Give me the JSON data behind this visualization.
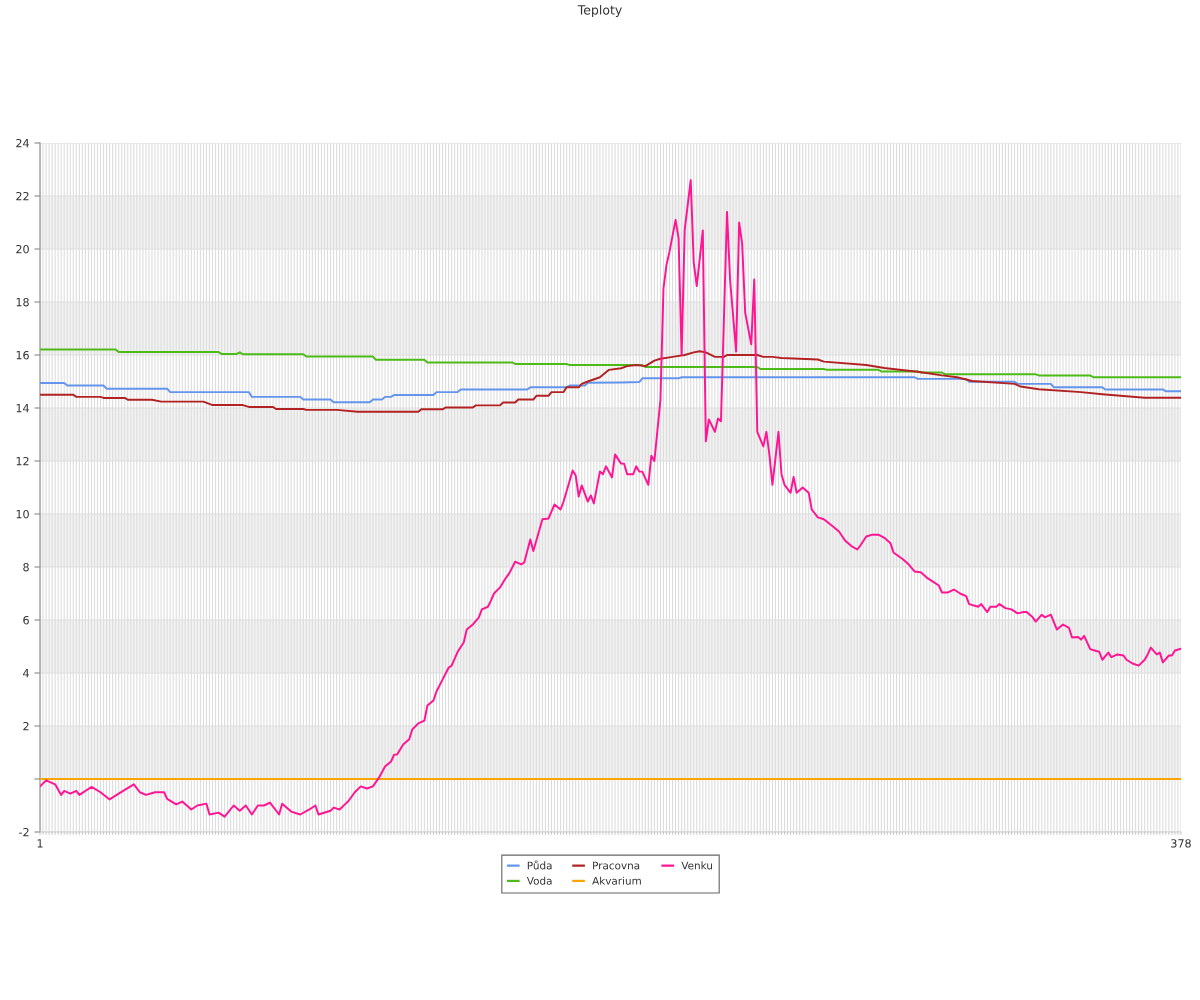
{
  "chart_data": {
    "type": "line",
    "title": "Teploty",
    "xlim": [
      1,
      378
    ],
    "xticks": [
      1,
      {
        "value": 2,
        "label": null
      },
      {
        "value": 3,
        "label": null
      },
      {
        "value": 4,
        "label": null
      },
      {
        "value": 5,
        "label": null
      },
      {
        "value": 6,
        "label": null
      },
      {
        "value": 7,
        "label": null
      },
      {
        "value": 8,
        "label": null
      },
      {
        "value": 9,
        "label": null
      },
      {
        "value": 10,
        "label": null
      },
      {
        "value": 11,
        "label": null
      },
      {
        "value": 12,
        "label": null
      },
      {
        "value": 13,
        "label": null
      },
      {
        "value": 14,
        "label": null
      },
      {
        "value": 15,
        "label": null
      },
      {
        "value": 16,
        "label": null
      },
      {
        "value": 17,
        "label": null
      },
      {
        "value": 18,
        "label": null
      },
      {
        "value": 19,
        "label": null
      },
      {
        "value": 20,
        "label": null
      },
      {
        "value": 21,
        "label": null
      },
      {
        "value": 22,
        "label": null
      },
      {
        "value": 23,
        "label": null
      },
      {
        "value": 24,
        "label": null
      },
      {
        "value": 25,
        "label": null
      },
      {
        "value": 26,
        "label": null
      },
      {
        "value": 27,
        "label": null
      },
      {
        "value": 28,
        "label": null
      },
      {
        "value": 29,
        "label": null
      },
      {
        "value": 30,
        "label": null
      },
      {
        "value": 31,
        "label": null
      },
      {
        "value": 32,
        "label": null
      },
      {
        "value": 33,
        "label": null
      },
      {
        "value": 34,
        "label": null
      },
      {
        "value": 35,
        "label": null
      },
      {
        "value": 36,
        "label": null
      },
      {
        "value": 37,
        "label": null
      },
      {
        "value": 38,
        "label": null
      },
      {
        "value": 39,
        "label": null
      },
      {
        "value": 40,
        "label": null
      },
      {
        "value": 41,
        "label": null
      },
      {
        "value": 42,
        "label": null
      },
      {
        "value": 43,
        "label": null
      },
      {
        "value": 44,
        "label": null
      },
      {
        "value": 45,
        "label": null
      },
      {
        "value": 46,
        "label": null
      },
      {
        "value": 47,
        "label": null
      },
      {
        "value": 48,
        "label": null
      },
      {
        "value": 49,
        "label": null
      },
      {
        "value": 50,
        "label": null
      },
      {
        "value": 51,
        "label": null
      },
      {
        "value": 52,
        "label": null
      },
      {
        "value": 53,
        "label": null
      },
      {
        "value": 54,
        "label": null
      },
      {
        "value": 55,
        "label": null
      },
      {
        "value": 56,
        "label": null
      },
      {
        "value": 57,
        "label": null
      },
      {
        "value": 58,
        "label": null
      },
      {
        "value": 59,
        "label": null
      },
      {
        "value": 60,
        "label": null
      },
      {
        "value": 61,
        "label": null
      },
      {
        "value": 62,
        "label": null
      },
      {
        "value": 63,
        "label": null
      },
      {
        "value": 64,
        "label": null
      },
      {
        "value": 65,
        "label": null
      },
      {
        "value": 66,
        "label": null
      },
      {
        "value": 67,
        "label": null
      },
      {
        "value": 68,
        "label": null
      },
      {
        "value": 69,
        "label": null
      },
      {
        "value": 70,
        "label": null
      },
      {
        "value": 71,
        "label": null
      },
      {
        "value": 72,
        "label": null
      },
      {
        "value": 73,
        "label": null
      },
      {
        "value": 74,
        "label": null
      },
      {
        "value": 75,
        "label": null
      },
      {
        "value": 76,
        "label": null
      },
      {
        "value": 77,
        "label": null
      },
      {
        "value": 78,
        "label": null
      },
      {
        "value": 79,
        "label": null
      },
      {
        "value": 80,
        "label": null
      },
      {
        "value": 81,
        "label": null
      },
      {
        "value": 82,
        "label": null
      },
      {
        "value": 83,
        "label": null
      },
      {
        "value": 84,
        "label": null
      },
      {
        "value": 85,
        "label": null
      },
      {
        "value": 86,
        "label": null
      },
      {
        "value": 87,
        "label": null
      },
      {
        "value": 88,
        "label": null
      },
      {
        "value": 89,
        "label": null
      },
      {
        "value": 90,
        "label": null
      },
      {
        "value": 91,
        "label": null
      },
      {
        "value": 92,
        "label": null
      },
      {
        "value": 93,
        "label": null
      },
      {
        "value": 94,
        "label": null
      },
      {
        "value": 95,
        "label": null
      },
      {
        "value": 96,
        "label": null
      },
      {
        "value": 97,
        "label": null
      },
      {
        "value": 98,
        "label": null
      },
      {
        "value": 99,
        "label": null
      },
      {
        "value": 100,
        "label": null
      },
      {
        "value": 101,
        "label": null
      },
      {
        "value": 102,
        "label": null
      },
      {
        "value": 103,
        "label": null
      },
      {
        "value": 104,
        "label": null
      },
      {
        "value": 105,
        "label": null
      },
      {
        "value": 106,
        "label": null
      },
      {
        "value": 107,
        "label": null
      },
      {
        "value": 108,
        "label": null
      },
      {
        "value": 109,
        "label": null
      },
      {
        "value": 110,
        "label": null
      },
      {
        "value": 111,
        "label": null
      },
      {
        "value": 112,
        "label": null
      },
      {
        "value": 113,
        "label": null
      },
      {
        "value": 114,
        "label": null
      },
      {
        "value": 115,
        "label": null
      },
      {
        "value": 116,
        "label": null
      },
      {
        "value": 117,
        "label": null
      },
      {
        "value": 118,
        "label": null
      },
      {
        "value": 119,
        "label": null
      },
      {
        "value": 120,
        "label": null
      },
      {
        "value": 121,
        "label": null
      },
      {
        "value": 122,
        "label": null
      },
      {
        "value": 123,
        "label": null
      },
      {
        "value": 124,
        "label": null
      },
      {
        "value": 125,
        "label": null
      },
      {
        "value": 126,
        "label": null
      },
      {
        "value": 127,
        "label": null
      },
      {
        "value": 128,
        "label": null
      },
      {
        "value": 129,
        "label": null
      },
      {
        "value": 130,
        "label": null
      },
      {
        "value": 131,
        "label": null
      },
      {
        "value": 132,
        "label": null
      },
      {
        "value": 133,
        "label": null
      },
      {
        "value": 134,
        "label": null
      },
      {
        "value": 135,
        "label": null
      },
      {
        "value": 136,
        "label": null
      },
      {
        "value": 137,
        "label": null
      },
      {
        "value": 138,
        "label": null
      },
      {
        "value": 139,
        "label": null
      },
      {
        "value": 140,
        "label": null
      },
      {
        "value": 141,
        "label": null
      },
      {
        "value": 142,
        "label": null
      },
      {
        "value": 143,
        "label": null
      },
      {
        "value": 144,
        "label": null
      },
      {
        "value": 145,
        "label": null
      },
      {
        "value": 146,
        "label": null
      },
      {
        "value": 147,
        "label": null
      },
      {
        "value": 148,
        "label": null
      },
      {
        "value": 149,
        "label": null
      },
      {
        "value": 150,
        "label": null
      },
      {
        "value": 151,
        "label": null
      },
      {
        "value": 152,
        "label": null
      },
      {
        "value": 153,
        "label": null
      },
      {
        "value": 154,
        "label": null
      },
      {
        "value": 155,
        "label": null
      },
      {
        "value": 156,
        "label": null
      },
      {
        "value": 157,
        "label": null
      },
      {
        "value": 158,
        "label": null
      },
      {
        "value": 159,
        "label": null
      },
      {
        "value": 160,
        "label": null
      },
      {
        "value": 161,
        "label": null
      },
      {
        "value": 162,
        "label": null
      },
      {
        "value": 163,
        "label": null
      },
      {
        "value": 164,
        "label": null
      },
      {
        "value": 165,
        "label": null
      },
      {
        "value": 166,
        "label": null
      },
      {
        "value": 167,
        "label": null
      },
      {
        "value": 168,
        "label": null
      },
      {
        "value": 169,
        "label": null
      },
      {
        "value": 170,
        "label": null
      },
      {
        "value": 171,
        "label": null
      },
      {
        "value": 172,
        "label": null
      },
      {
        "value": 173,
        "label": null
      },
      {
        "value": 174,
        "label": null
      },
      {
        "value": 175,
        "label": null
      },
      {
        "value": 176,
        "label": null
      },
      {
        "value": 177,
        "label": null
      },
      {
        "value": 178,
        "label": null
      },
      {
        "value": 179,
        "label": null
      },
      {
        "value": 180,
        "label": null
      },
      {
        "value": 181,
        "label": null
      },
      {
        "value": 182,
        "label": null
      },
      {
        "value": 183,
        "label": null
      },
      {
        "value": 184,
        "label": null
      },
      {
        "value": 185,
        "label": null
      },
      {
        "value": 186,
        "label": null
      },
      {
        "value": 187,
        "label": null
      },
      {
        "value": 188,
        "label": null
      },
      {
        "value": 189,
        "label": null
      },
      {
        "value": 190,
        "label": null
      },
      {
        "value": 191,
        "label": null
      },
      {
        "value": 192,
        "label": null
      },
      {
        "value": 193,
        "label": null
      },
      {
        "value": 194,
        "label": null
      },
      {
        "value": 195,
        "label": null
      },
      {
        "value": 196,
        "label": null
      },
      {
        "value": 197,
        "label": null
      },
      {
        "value": 198,
        "label": null
      },
      {
        "value": 199,
        "label": null
      },
      {
        "value": 200,
        "label": null
      },
      {
        "value": 201,
        "label": null
      },
      {
        "value": 202,
        "label": null
      },
      {
        "value": 203,
        "label": null
      },
      {
        "value": 204,
        "label": null
      },
      {
        "value": 205,
        "label": null
      },
      {
        "value": 206,
        "label": null
      },
      {
        "value": 207,
        "label": null
      },
      {
        "value": 208,
        "label": null
      },
      {
        "value": 209,
        "label": null
      },
      {
        "value": 210,
        "label": null
      },
      {
        "value": 211,
        "label": null
      },
      {
        "value": 212,
        "label": null
      },
      {
        "value": 213,
        "label": null
      },
      {
        "value": 214,
        "label": null
      },
      {
        "value": 215,
        "label": null
      },
      {
        "value": 216,
        "label": null
      },
      {
        "value": 217,
        "label": null
      },
      {
        "value": 218,
        "label": null
      },
      {
        "value": 219,
        "label": null
      },
      {
        "value": 220,
        "label": null
      },
      {
        "value": 221,
        "label": null
      },
      {
        "value": 222,
        "label": null
      },
      {
        "value": 223,
        "label": null
      },
      {
        "value": 224,
        "label": null
      },
      {
        "value": 225,
        "label": null
      },
      {
        "value": 226,
        "label": null
      },
      {
        "value": 227,
        "label": null
      },
      {
        "value": 228,
        "label": null
      },
      {
        "value": 229,
        "label": null
      },
      {
        "value": 230,
        "label": null
      },
      {
        "value": 231,
        "label": null
      },
      {
        "value": 232,
        "label": null
      },
      {
        "value": 233,
        "label": null
      },
      {
        "value": 234,
        "label": null
      },
      {
        "value": 235,
        "label": null
      },
      {
        "value": 236,
        "label": null
      },
      {
        "value": 237,
        "label": null
      },
      {
        "value": 238,
        "label": null
      },
      {
        "value": 239,
        "label": null
      },
      {
        "value": 240,
        "label": null
      },
      {
        "value": 241,
        "label": null
      },
      {
        "value": 242,
        "label": null
      },
      {
        "value": 243,
        "label": null
      },
      {
        "value": 244,
        "label": null
      },
      {
        "value": 245,
        "label": null
      },
      {
        "value": 246,
        "label": null
      },
      {
        "value": 247,
        "label": null
      },
      {
        "value": 248,
        "label": null
      },
      {
        "value": 249,
        "label": null
      },
      {
        "value": 250,
        "label": null
      },
      {
        "value": 251,
        "label": null
      },
      {
        "value": 252,
        "label": null
      },
      {
        "value": 253,
        "label": null
      },
      {
        "value": 254,
        "label": null
      },
      {
        "value": 255,
        "label": null
      },
      {
        "value": 256,
        "label": null
      },
      {
        "value": 257,
        "label": null
      },
      {
        "value": 258,
        "label": null
      },
      {
        "value": 259,
        "label": null
      },
      {
        "value": 260,
        "label": null
      },
      {
        "value": 261,
        "label": null
      },
      {
        "value": 262,
        "label": null
      },
      {
        "value": 263,
        "label": null
      },
      {
        "value": 264,
        "label": null
      },
      {
        "value": 265,
        "label": null
      },
      {
        "value": 266,
        "label": null
      },
      {
        "value": 267,
        "label": null
      },
      {
        "value": 268,
        "label": null
      },
      {
        "value": 269,
        "label": null
      },
      {
        "value": 270,
        "label": null
      },
      {
        "value": 271,
        "label": null
      },
      {
        "value": 272,
        "label": null
      },
      {
        "value": 273,
        "label": null
      },
      {
        "value": 274,
        "label": null
      },
      {
        "value": 275,
        "label": null
      },
      {
        "value": 276,
        "label": null
      },
      {
        "value": 277,
        "label": null
      },
      {
        "value": 278,
        "label": null
      },
      {
        "value": 279,
        "label": null
      },
      {
        "value": 280,
        "label": null
      },
      {
        "value": 281,
        "label": null
      },
      {
        "value": 282,
        "label": null
      },
      {
        "value": 283,
        "label": null
      },
      {
        "value": 284,
        "label": null
      },
      {
        "value": 285,
        "label": null
      },
      {
        "value": 286,
        "label": null
      },
      {
        "value": 287,
        "label": null
      },
      {
        "value": 288,
        "label": null
      },
      {
        "value": 289,
        "label": null
      },
      {
        "value": 290,
        "label": null
      },
      {
        "value": 291,
        "label": null
      },
      {
        "value": 292,
        "label": null
      },
      {
        "value": 293,
        "label": null
      },
      {
        "value": 294,
        "label": null
      },
      {
        "value": 295,
        "label": null
      },
      {
        "value": 296,
        "label": null
      },
      {
        "value": 297,
        "label": null
      },
      {
        "value": 298,
        "label": null
      },
      {
        "value": 299,
        "label": null
      },
      {
        "value": 300,
        "label": null
      },
      {
        "value": 301,
        "label": null
      },
      {
        "value": 302,
        "label": null
      },
      {
        "value": 303,
        "label": null
      },
      {
        "value": 304,
        "label": null
      },
      {
        "value": 305,
        "label": null
      },
      {
        "value": 306,
        "label": null
      },
      {
        "value": 307,
        "label": null
      },
      {
        "value": 308,
        "label": null
      },
      {
        "value": 309,
        "label": null
      },
      {
        "value": 310,
        "label": null
      },
      {
        "value": 311,
        "label": null
      },
      {
        "value": 312,
        "label": null
      },
      {
        "value": 313,
        "label": null
      },
      {
        "value": 314,
        "label": null
      },
      {
        "value": 315,
        "label": null
      },
      {
        "value": 316,
        "label": null
      },
      {
        "value": 317,
        "label": null
      },
      {
        "value": 318,
        "label": null
      },
      {
        "value": 319,
        "label": null
      },
      {
        "value": 320,
        "label": null
      },
      {
        "value": 321,
        "label": null
      },
      {
        "value": 322,
        "label": null
      },
      {
        "value": 323,
        "label": null
      },
      {
        "value": 324,
        "label": null
      },
      {
        "value": 325,
        "label": null
      },
      {
        "value": 326,
        "label": null
      },
      {
        "value": 327,
        "label": null
      },
      {
        "value": 328,
        "label": null
      },
      {
        "value": 329,
        "label": null
      },
      {
        "value": 330,
        "label": null
      },
      {
        "value": 331,
        "label": null
      },
      {
        "value": 332,
        "label": null
      },
      {
        "value": 333,
        "label": null
      },
      {
        "value": 334,
        "label": null
      },
      {
        "value": 335,
        "label": null
      },
      {
        "value": 336,
        "label": null
      },
      {
        "value": 337,
        "label": null
      },
      {
        "value": 338,
        "label": null
      },
      {
        "value": 339,
        "label": null
      },
      {
        "value": 340,
        "label": null
      },
      {
        "value": 341,
        "label": null
      },
      {
        "value": 342,
        "label": null
      },
      {
        "value": 343,
        "label": null
      },
      {
        "value": 344,
        "label": null
      },
      {
        "value": 345,
        "label": null
      },
      {
        "value": 346,
        "label": null
      },
      {
        "value": 347,
        "label": null
      },
      {
        "value": 348,
        "label": null
      },
      {
        "value": 349,
        "label": null
      },
      {
        "value": 350,
        "label": null
      },
      {
        "value": 351,
        "label": null
      },
      {
        "value": 352,
        "label": null
      },
      {
        "value": 353,
        "label": null
      },
      {
        "value": 354,
        "label": null
      },
      {
        "value": 355,
        "label": null
      },
      {
        "value": 356,
        "label": null
      },
      {
        "value": 357,
        "label": null
      },
      {
        "value": 358,
        "label": null
      },
      {
        "value": 359,
        "label": null
      },
      {
        "value": 360,
        "label": null
      },
      {
        "value": 361,
        "label": null
      },
      {
        "value": 362,
        "label": null
      },
      {
        "value": 363,
        "label": null
      },
      {
        "value": 364,
        "label": null
      },
      {
        "value": 365,
        "label": null
      },
      {
        "value": 366,
        "label": null
      },
      {
        "value": 367,
        "label": null
      },
      {
        "value": 368,
        "label": null
      },
      {
        "value": 369,
        "label": null
      },
      {
        "value": 370,
        "label": null
      },
      {
        "value": 371,
        "label": null
      },
      {
        "value": 372,
        "label": null
      },
      {
        "value": 373,
        "label": null
      },
      {
        "value": 374,
        "label": null
      },
      {
        "value": 375,
        "label": null
      },
      {
        "value": 376,
        "label": null
      },
      {
        "value": 377,
        "label": null
      },
      378
    ],
    "ylim": [
      -2,
      24
    ],
    "yticks": [
      -2,
      {
        "value": 0,
        "label": null
      },
      2,
      4,
      6,
      8,
      10,
      12,
      14,
      16,
      18,
      20,
      22,
      24
    ],
    "grid": true,
    "legend": "bottom",
    "bands": [
      {
        "axis": "y",
        "from": 0,
        "to": 2,
        "color": "#f2f2f2"
      },
      {
        "axis": "y",
        "from": 4,
        "to": 6,
        "color": "#f2f2f2"
      },
      {
        "axis": "y",
        "from": 8,
        "to": 10,
        "color": "#f2f2f2"
      },
      {
        "axis": "y",
        "from": 12,
        "to": 14,
        "color": "#f2f2f2"
      },
      {
        "axis": "y",
        "from": 16,
        "to": 18,
        "color": "#f2f2f2"
      },
      {
        "axis": "y",
        "from": 20,
        "to": 22,
        "color": "#f2f2f2"
      }
    ],
    "series": [
      {
        "name": "Půda",
        "color": "#6495ed",
        "x": [
          1,
          9,
          10,
          22,
          23,
          43,
          44,
          70,
          71,
          87,
          88,
          97,
          98,
          110,
          111,
          114,
          115,
          117,
          118,
          131,
          132,
          139,
          140,
          162,
          163,
          175,
          176,
          181,
          182,
          193,
          199,
          200,
          212,
          213,
          290,
          291,
          307,
          308,
          323,
          324,
          335,
          336,
          352,
          353,
          372,
          373,
          378
        ],
        "values": [
          14.94,
          14.94,
          14.85,
          14.85,
          14.73,
          14.73,
          14.6,
          14.6,
          14.42,
          14.42,
          14.32,
          14.32,
          14.22,
          14.22,
          14.32,
          14.32,
          14.42,
          14.42,
          14.49,
          14.49,
          14.6,
          14.6,
          14.7,
          14.7,
          14.78,
          14.78,
          14.85,
          14.85,
          14.95,
          14.96,
          14.98,
          15.12,
          15.12,
          15.16,
          15.16,
          15.1,
          15.1,
          14.99,
          14.99,
          14.91,
          14.91,
          14.78,
          14.78,
          14.7,
          14.7,
          14.63,
          14.63
        ]
      },
      {
        "name": "Voda",
        "color": "#4cbb17",
        "x": [
          1,
          26,
          27,
          60,
          61,
          66,
          67,
          68,
          88,
          89,
          111,
          112,
          128,
          129,
          157,
          158,
          175,
          176,
          200,
          201,
          238,
          239,
          260,
          261,
          278,
          279,
          291,
          292,
          299,
          300,
          330,
          331,
          348,
          349,
          378
        ],
        "values": [
          16.21,
          16.21,
          16.11,
          16.11,
          16.04,
          16.04,
          16.1,
          16.03,
          16.03,
          15.94,
          15.94,
          15.82,
          15.82,
          15.72,
          15.72,
          15.66,
          15.66,
          15.62,
          15.62,
          15.55,
          15.55,
          15.47,
          15.47,
          15.44,
          15.44,
          15.38,
          15.38,
          15.34,
          15.34,
          15.27,
          15.27,
          15.23,
          15.23,
          15.16,
          15.16
        ]
      },
      {
        "name": "Pracovna",
        "color": "#b22222",
        "x": [
          1,
          12,
          13,
          21,
          22,
          29,
          30,
          38,
          41,
          55,
          58,
          68,
          70,
          78,
          79,
          88,
          89,
          99,
          106,
          126,
          127,
          134,
          135,
          144,
          145,
          153,
          154,
          158,
          159,
          164,
          165,
          169,
          170,
          174,
          175,
          179,
          180,
          182,
          186,
          189,
          193,
          195,
          198,
          201,
          204,
          206,
          210,
          214,
          217,
          219,
          221,
          224,
          227,
          228,
          238,
          240,
          243,
          246,
          258,
          260,
          274,
          280,
          285,
          291,
          295,
          299,
          304,
          309,
          323,
          325,
          331,
          345,
          352,
          366,
          378
        ],
        "values": [
          14.5,
          14.5,
          14.42,
          14.42,
          14.38,
          14.38,
          14.31,
          14.31,
          14.24,
          14.24,
          14.11,
          14.11,
          14.04,
          14.04,
          13.96,
          13.96,
          13.93,
          13.93,
          13.86,
          13.86,
          13.95,
          13.95,
          14.02,
          14.02,
          14.1,
          14.1,
          14.21,
          14.21,
          14.32,
          14.32,
          14.46,
          14.46,
          14.6,
          14.6,
          14.78,
          14.78,
          14.91,
          15.0,
          15.16,
          15.44,
          15.5,
          15.58,
          15.62,
          15.58,
          15.79,
          15.86,
          15.93,
          16.0,
          16.1,
          16.14,
          16.1,
          15.93,
          15.93,
          16.0,
          16.0,
          15.93,
          15.93,
          15.89,
          15.83,
          15.75,
          15.62,
          15.51,
          15.44,
          15.37,
          15.3,
          15.23,
          15.16,
          15.02,
          14.91,
          14.81,
          14.71,
          14.6,
          14.52,
          14.39,
          14.39
        ]
      },
      {
        "name": "Akvarium",
        "color": "#ffa500",
        "x": [
          1,
          378
        ],
        "values": [
          0,
          0
        ]
      },
      {
        "name": "Venku",
        "color": "#ff1493",
        "x": [
          1,
          3,
          6,
          8,
          9,
          11,
          13,
          14,
          18,
          21,
          24,
          27,
          32,
          34,
          36,
          39,
          42,
          43,
          46,
          48,
          51,
          53,
          56,
          57,
          60,
          62,
          65,
          67,
          69,
          71,
          73,
          75,
          77,
          80,
          81,
          84,
          87,
          90,
          92,
          93,
          97,
          98,
          100,
          102,
          103,
          105,
          107,
          109,
          111,
          113,
          115,
          117,
          118,
          119,
          121,
          123,
          124,
          126,
          128,
          129,
          131,
          132,
          134,
          136,
          137,
          139,
          141,
          142,
          144,
          146,
          147,
          149,
          150,
          151,
          153,
          155,
          156,
          158,
          160,
          161,
          163,
          164,
          166,
          167,
          169,
          171,
          173,
          174,
          177,
          178,
          179,
          180,
          182,
          183,
          184,
          186,
          187,
          188,
          190,
          191,
          193,
          194,
          195,
          197,
          198,
          199,
          200,
          202,
          203,
          204,
          206,
          207,
          208,
          209,
          211,
          212,
          213,
          214,
          216,
          217,
          218,
          220,
          221,
          222,
          224,
          225,
          226,
          228,
          229,
          231,
          232,
          233,
          234,
          236,
          237,
          238,
          240,
          241,
          242,
          243,
          245,
          246,
          247,
          249,
          250,
          251,
          253,
          254,
          255,
          256,
          258,
          260,
          263,
          265,
          267,
          269,
          271,
          272,
          274,
          276,
          278,
          280,
          282,
          283,
          286,
          288,
          290,
          292,
          294,
          296,
          298,
          299,
          301,
          303,
          305,
          307,
          308,
          311,
          312,
          314,
          315,
          317,
          318,
          320,
          322,
          324,
          326,
          327,
          329,
          330,
          332,
          333,
          335,
          337,
          339,
          341,
          342,
          344,
          345,
          346,
          348,
          350,
          351,
          352,
          354,
          355,
          357,
          359,
          360,
          362,
          364,
          366,
          367,
          368,
          370,
          371,
          372,
          374,
          375,
          376,
          378
        ],
        "values": [
          -0.28,
          -0.05,
          -0.2,
          -0.6,
          -0.45,
          -0.55,
          -0.45,
          -0.6,
          -0.3,
          -0.5,
          -0.77,
          -0.55,
          -0.2,
          -0.5,
          -0.6,
          -0.5,
          -0.5,
          -0.75,
          -0.96,
          -0.85,
          -1.15,
          -1.0,
          -0.93,
          -1.34,
          -1.27,
          -1.42,
          -1.0,
          -1.2,
          -1.0,
          -1.34,
          -1.0,
          -1.0,
          -0.89,
          -1.34,
          -0.93,
          -1.23,
          -1.34,
          -1.15,
          -1.0,
          -1.34,
          -1.2,
          -1.08,
          -1.15,
          -0.93,
          -0.82,
          -0.5,
          -0.28,
          -0.36,
          -0.28,
          0.05,
          0.47,
          0.66,
          0.92,
          0.92,
          1.3,
          1.5,
          1.87,
          2.1,
          2.2,
          2.77,
          2.96,
          3.3,
          3.75,
          4.2,
          4.28,
          4.8,
          5.15,
          5.64,
          5.83,
          6.1,
          6.4,
          6.5,
          6.73,
          7.0,
          7.23,
          7.6,
          7.75,
          8.2,
          8.1,
          8.17,
          9.04,
          8.6,
          9.4,
          9.8,
          9.83,
          10.36,
          10.17,
          10.47,
          11.64,
          11.45,
          10.66,
          11.08,
          10.47,
          10.7,
          10.4,
          11.6,
          11.5,
          11.8,
          11.38,
          12.25,
          11.9,
          11.9,
          11.5,
          11.5,
          11.8,
          11.6,
          11.6,
          11.1,
          12.2,
          12.0,
          14.3,
          18.5,
          19.4,
          19.9,
          21.1,
          20.4,
          16.0,
          20.7,
          22.6,
          19.5,
          18.6,
          20.7,
          12.74,
          13.57,
          13.1,
          13.6,
          13.5,
          21.4,
          18.85,
          16.13,
          21.0,
          20.2,
          17.6,
          16.4,
          18.85,
          13.1,
          12.55,
          13.1,
          12.25,
          11.1,
          13.1,
          11.5,
          11.1,
          10.8,
          11.4,
          10.8,
          11.0,
          10.9,
          10.8,
          10.17,
          9.87,
          9.8,
          9.53,
          9.34,
          9.0,
          8.8,
          8.66,
          8.8,
          9.15,
          9.22,
          9.22,
          9.1,
          8.9,
          8.55,
          8.3,
          8.1,
          7.83,
          7.8,
          7.6,
          7.45,
          7.3,
          7.04,
          7.04,
          7.15,
          7.0,
          6.9,
          6.6,
          6.5,
          6.6,
          6.3,
          6.5,
          6.5,
          6.6,
          6.45,
          6.4,
          6.25,
          6.3,
          6.3,
          6.1,
          5.94,
          6.2,
          6.1,
          6.2,
          5.64,
          5.83,
          5.7,
          5.34,
          5.36,
          5.26,
          5.4,
          4.9,
          4.83,
          4.8,
          4.5,
          4.77,
          4.6,
          4.7,
          4.66,
          4.5,
          4.36,
          4.28,
          4.5,
          4.7,
          4.96,
          4.7,
          4.77,
          4.4,
          4.66,
          4.66,
          4.85,
          4.92
        ]
      }
    ]
  }
}
